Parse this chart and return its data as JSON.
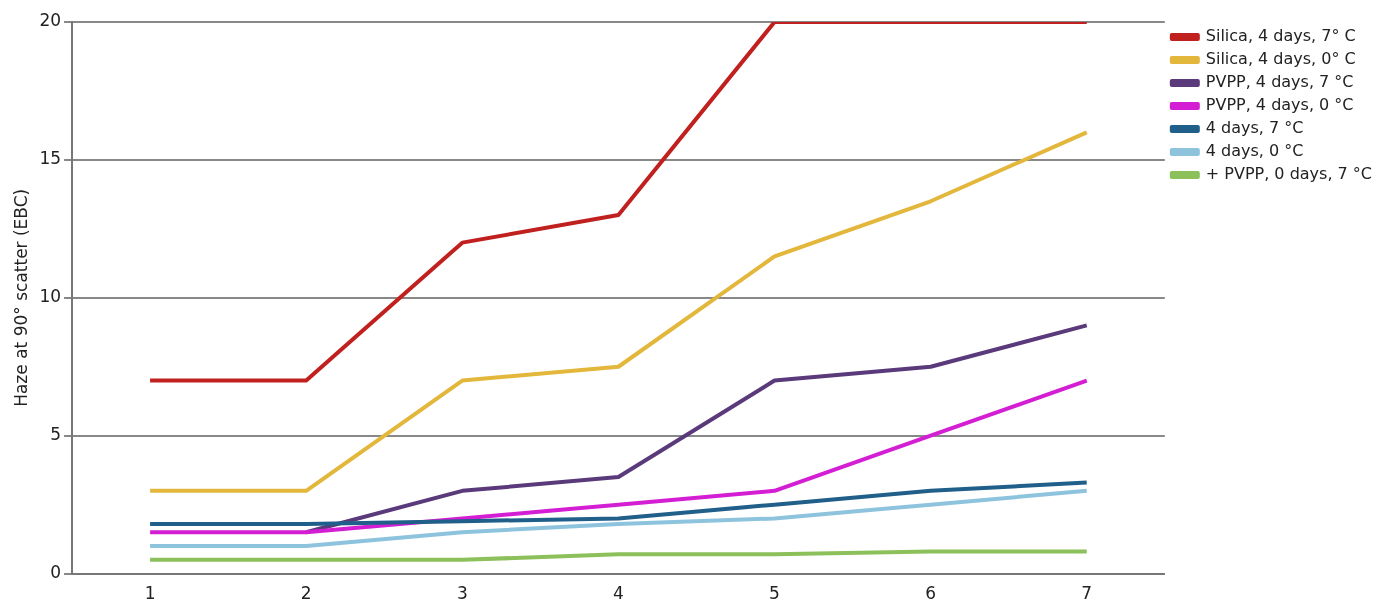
{
  "chart_data": {
    "type": "line",
    "ylabel": "Haze at 90° scatter (EBC)",
    "categories": [
      "1",
      "2",
      "3",
      "4",
      "5",
      "6",
      "7"
    ],
    "series": [
      {
        "name": "Silica, 4 days, 7° C",
        "color": "#c0201e",
        "values": [
          7,
          7,
          12,
          13,
          20,
          20,
          20
        ]
      },
      {
        "name": "Silica, 4 days, 0° C",
        "color": "#e3b73c",
        "values": [
          3,
          3,
          7,
          7.5,
          11.5,
          13.5,
          16
        ]
      },
      {
        "name": "PVPP, 4 days, 7 °C",
        "color": "#5a3a7a",
        "values": [
          null,
          1.5,
          3,
          3.5,
          7,
          7.5,
          9
        ]
      },
      {
        "name": "PVPP, 4 days, 0 °C",
        "color": "#d41ed4",
        "values": [
          1.5,
          1.5,
          2,
          2.5,
          3,
          5,
          7
        ]
      },
      {
        "name": "4 days, 7 °C",
        "color": "#1f5f8a",
        "values": [
          1.8,
          1.8,
          1.9,
          2,
          2.5,
          3,
          3.3
        ]
      },
      {
        "name": "4 days, 0 °C",
        "color": "#8ec3dd",
        "values": [
          1,
          1,
          1.5,
          1.8,
          2,
          2.5,
          3
        ]
      },
      {
        "name": "+ PVPP, 0 days, 7 °C",
        "color": "#8cc05a",
        "values": [
          0.5,
          0.5,
          0.5,
          0.7,
          0.7,
          0.8,
          0.8
        ]
      }
    ],
    "ylim": [
      0,
      20
    ],
    "yticks": [
      0,
      5,
      10,
      15,
      20
    ],
    "grid": "y",
    "legend": "top right",
    "marker": "none",
    "line_style": "solid"
  }
}
